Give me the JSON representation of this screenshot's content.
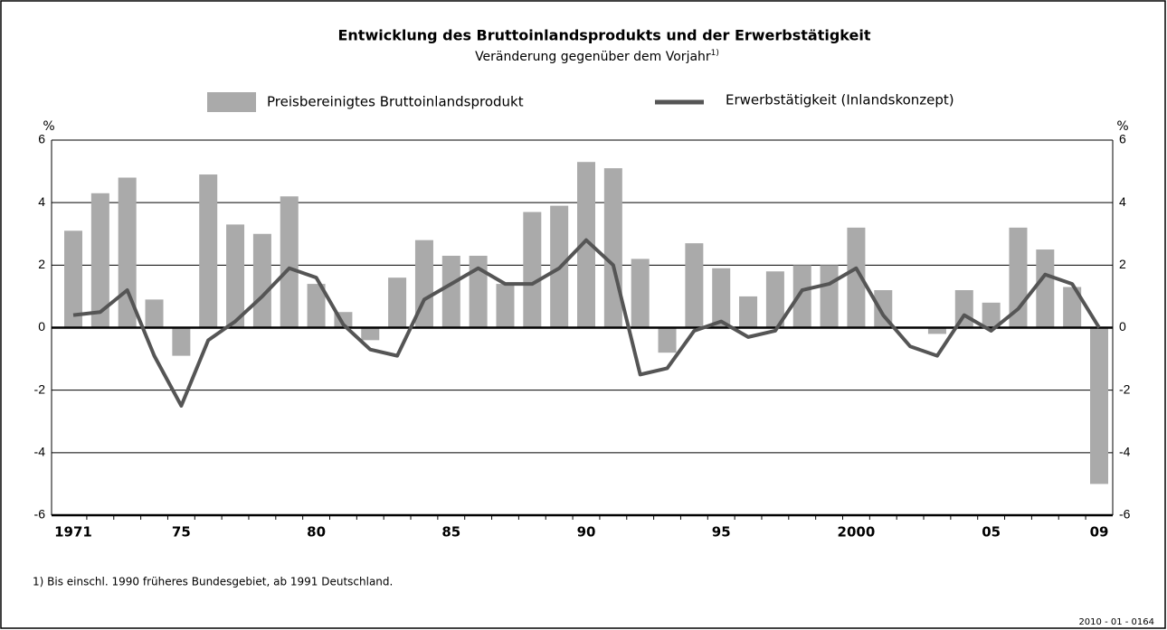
{
  "chart_data": {
    "type": "combo",
    "title": "Entwicklung des Bruttoinlandsprodukts und der Erwerbstätigkeit",
    "subtitle": "Veränderung gegenüber dem Vorjahr",
    "subtitle_note": "1)",
    "y_unit": "%",
    "categories": [
      "1971",
      null,
      null,
      null,
      "75",
      null,
      null,
      null,
      null,
      "80",
      null,
      null,
      null,
      null,
      "85",
      null,
      null,
      null,
      null,
      "90",
      null,
      null,
      null,
      null,
      "95",
      null,
      null,
      null,
      null,
      "2000",
      null,
      null,
      null,
      null,
      "05",
      null,
      null,
      null,
      "09"
    ],
    "series": [
      {
        "name": "Preisbereinigtes Bruttoinlandsprodukt",
        "type": "bar",
        "color": "#aaaaaa",
        "values": [
          3.1,
          4.3,
          4.8,
          0.9,
          -0.9,
          4.9,
          3.3,
          3.0,
          4.2,
          1.4,
          0.5,
          -0.4,
          1.6,
          2.8,
          2.3,
          2.3,
          1.4,
          3.7,
          3.9,
          5.3,
          5.1,
          2.2,
          -0.8,
          2.7,
          1.9,
          1.0,
          1.8,
          2.0,
          2.0,
          3.2,
          1.2,
          0.0,
          -0.2,
          1.2,
          0.8,
          3.2,
          2.5,
          1.3,
          -5.0
        ]
      },
      {
        "name": "Erwerbstätigkeit (Inlandskonzept)",
        "type": "line",
        "color": "#555555",
        "values": [
          0.4,
          0.5,
          1.2,
          -0.9,
          -2.5,
          -0.4,
          0.2,
          1.0,
          1.9,
          1.6,
          0.1,
          -0.7,
          -0.9,
          0.9,
          1.4,
          1.9,
          1.4,
          1.4,
          1.9,
          2.8,
          2.0,
          -1.5,
          -1.3,
          -0.1,
          0.2,
          -0.3,
          -0.1,
          1.2,
          1.4,
          1.9,
          0.4,
          -0.6,
          -0.9,
          0.4,
          -0.1,
          0.6,
          1.7,
          1.4,
          0.0
        ]
      }
    ],
    "ylim": [
      -6,
      6
    ],
    "yticks": [
      -6,
      -4,
      -2,
      0,
      2,
      4,
      6
    ],
    "grid": true,
    "footnote": "1) Bis einschl. 1990 früheres Bundesgebiet, ab 1991 Deutschland.",
    "code": "2010 - 01 - 0164"
  }
}
